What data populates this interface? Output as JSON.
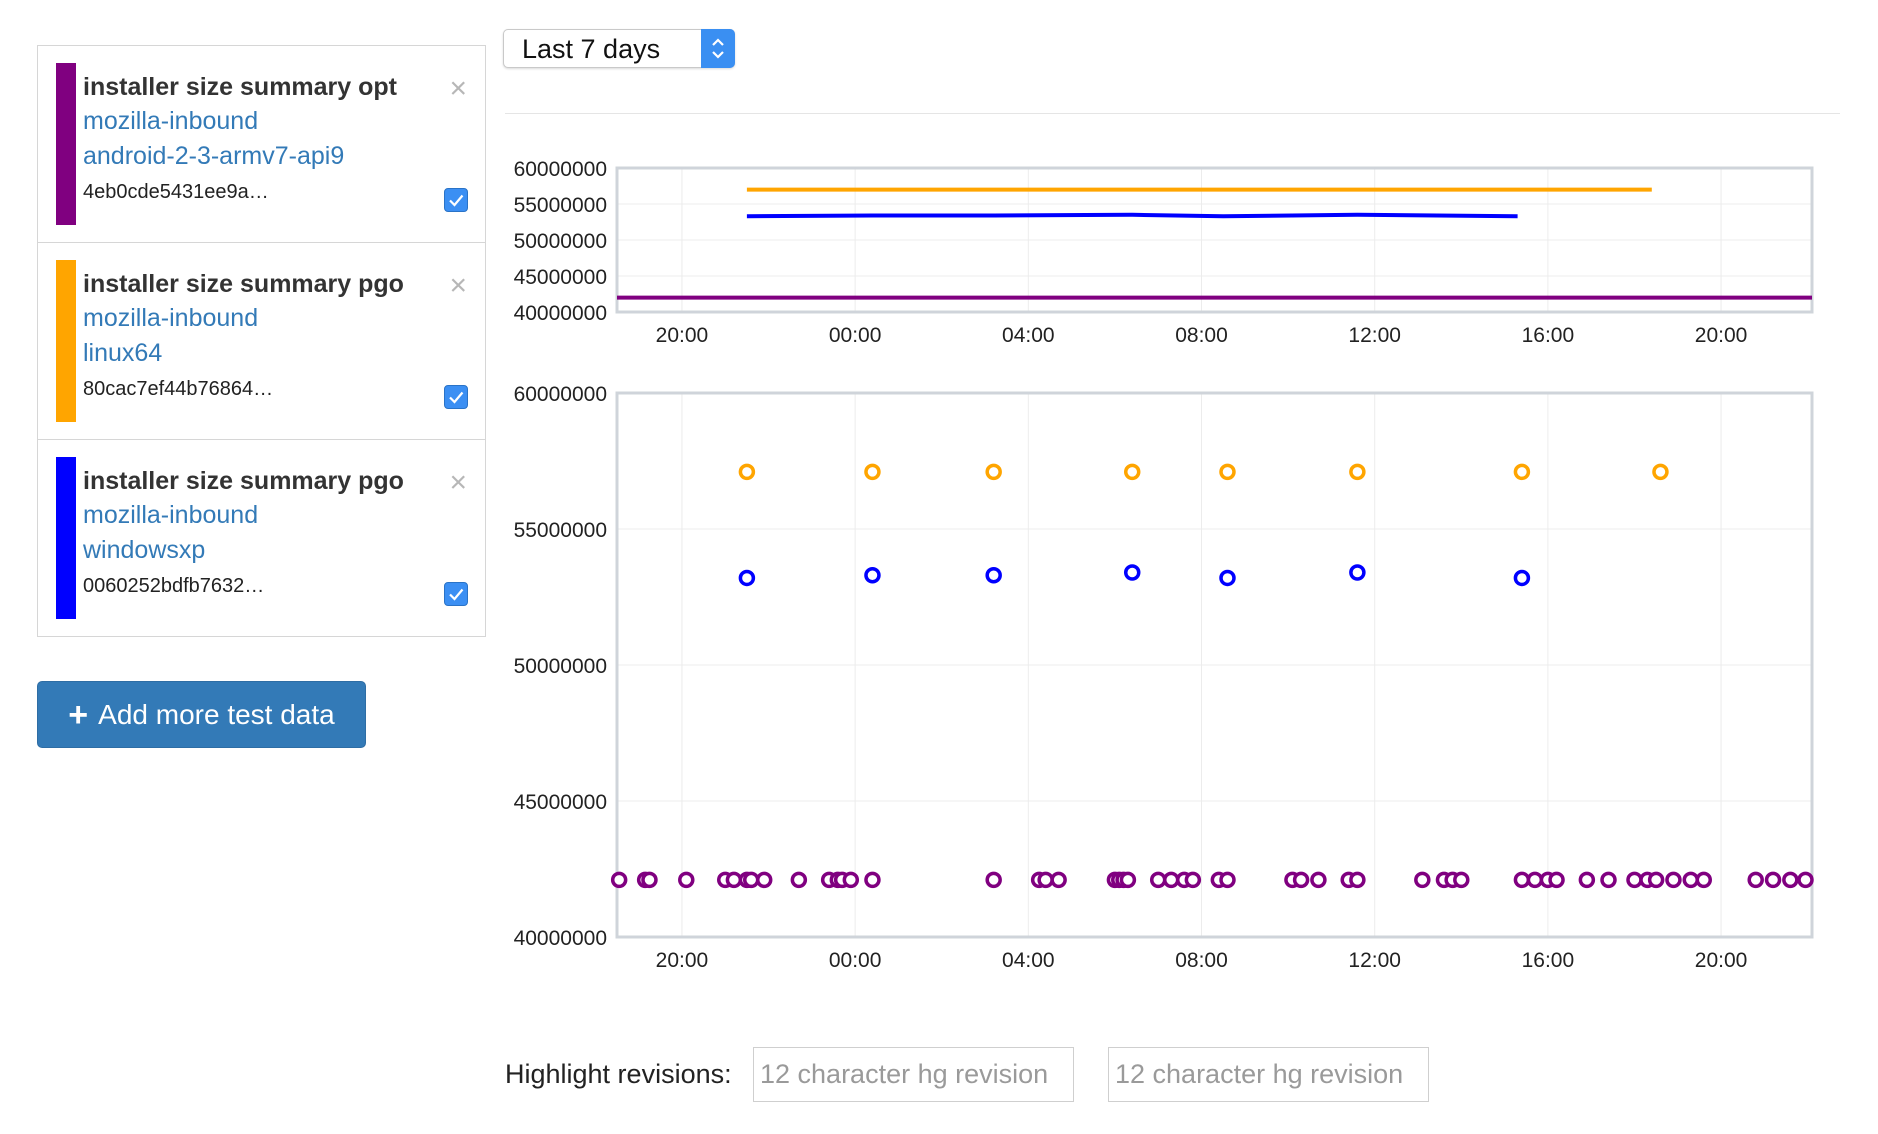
{
  "legend": {
    "series": [
      {
        "title": "installer size summary opt",
        "project": "mozilla-inbound",
        "platform": "android-2-3-armv7-api9",
        "signature": "4eb0cde5431ee9a…",
        "color": "#800080",
        "checked": true
      },
      {
        "title": "installer size summary pgo",
        "project": "mozilla-inbound",
        "platform": "linux64",
        "signature": "80cac7ef44b76864…",
        "color": "#ffa500",
        "checked": true
      },
      {
        "title": "installer size summary pgo",
        "project": "mozilla-inbound",
        "platform": "windowsxp",
        "signature": "0060252bdfb7632…",
        "color": "#0000ff",
        "checked": true
      }
    ],
    "close_glyph": "×",
    "add_button": "Add more test data",
    "add_icon": "plus-icon"
  },
  "time_range": {
    "selected": "Last 7 days"
  },
  "highlight": {
    "label": "Highlight revisions:",
    "placeholder_1": "12 character hg revision",
    "placeholder_2": "12 character hg revision"
  },
  "chart_data": [
    {
      "type": "line",
      "role": "overview",
      "x_unit": "hours",
      "xlim": [
        18.5,
        46.1
      ],
      "x_ticks": [
        20,
        24,
        28,
        32,
        36,
        40,
        44
      ],
      "x_tick_labels": [
        "20:00",
        "00:00",
        "04:00",
        "08:00",
        "12:00",
        "16:00",
        "20:00"
      ],
      "ylim": [
        40000000,
        60000000
      ],
      "y_ticks": [
        40000000,
        45000000,
        50000000,
        55000000,
        60000000
      ],
      "y_tick_labels": [
        "40000000",
        "45000000",
        "50000000",
        "55000000",
        "60000000"
      ],
      "grid": true,
      "series": [
        {
          "color": "#800080",
          "points": [
            [
              18.5,
              42000000
            ],
            [
              46.1,
              42000000
            ]
          ]
        },
        {
          "color": "#ffa500",
          "points": [
            [
              21.5,
              57000000
            ],
            [
              42.4,
              57000000
            ]
          ]
        },
        {
          "color": "#0000ff",
          "points": [
            [
              21.5,
              53300000
            ],
            [
              24.4,
              53400000
            ],
            [
              27.2,
              53400000
            ],
            [
              30.4,
              53500000
            ],
            [
              32.5,
              53300000
            ],
            [
              35.6,
              53500000
            ],
            [
              39.3,
              53300000
            ]
          ]
        }
      ]
    },
    {
      "type": "scatter",
      "role": "detail",
      "x_unit": "hours",
      "xlim": [
        18.5,
        46.1
      ],
      "x_ticks": [
        20,
        24,
        28,
        32,
        36,
        40,
        44
      ],
      "x_tick_labels": [
        "20:00",
        "00:00",
        "04:00",
        "08:00",
        "12:00",
        "16:00",
        "20:00"
      ],
      "ylim": [
        40000000,
        60000000
      ],
      "y_ticks": [
        40000000,
        45000000,
        50000000,
        55000000,
        60000000
      ],
      "y_tick_labels": [
        "40000000",
        "45000000",
        "50000000",
        "55000000",
        "60000000"
      ],
      "grid": true,
      "series": [
        {
          "color": "#ffa500",
          "points": [
            [
              21.5,
              57100000
            ],
            [
              24.4,
              57100000
            ],
            [
              27.2,
              57100000
            ],
            [
              30.4,
              57100000
            ],
            [
              32.6,
              57100000
            ],
            [
              35.6,
              57100000
            ],
            [
              39.4,
              57100000
            ],
            [
              42.6,
              57100000
            ]
          ]
        },
        {
          "color": "#0000ff",
          "points": [
            [
              21.5,
              53200000
            ],
            [
              24.4,
              53300000
            ],
            [
              27.2,
              53300000
            ],
            [
              30.4,
              53400000
            ],
            [
              32.6,
              53200000
            ],
            [
              35.6,
              53400000
            ],
            [
              39.4,
              53200000
            ]
          ]
        },
        {
          "color": "#800080",
          "points": [
            [
              18.55,
              42100000
            ],
            [
              19.15,
              42100000
            ],
            [
              19.25,
              42100000
            ],
            [
              20.1,
              42100000
            ],
            [
              21.0,
              42100000
            ],
            [
              21.2,
              42100000
            ],
            [
              21.5,
              42100000
            ],
            [
              21.6,
              42100000
            ],
            [
              21.9,
              42100000
            ],
            [
              22.7,
              42100000
            ],
            [
              23.4,
              42100000
            ],
            [
              23.6,
              42100000
            ],
            [
              23.7,
              42100000
            ],
            [
              23.9,
              42100000
            ],
            [
              24.4,
              42100000
            ],
            [
              27.2,
              42100000
            ],
            [
              28.25,
              42100000
            ],
            [
              28.4,
              42100000
            ],
            [
              28.7,
              42100000
            ],
            [
              30.0,
              42100000
            ],
            [
              30.1,
              42100000
            ],
            [
              30.2,
              42100000
            ],
            [
              30.3,
              42100000
            ],
            [
              31.0,
              42100000
            ],
            [
              31.3,
              42100000
            ],
            [
              31.6,
              42100000
            ],
            [
              31.8,
              42100000
            ],
            [
              32.4,
              42100000
            ],
            [
              32.6,
              42100000
            ],
            [
              34.1,
              42100000
            ],
            [
              34.3,
              42100000
            ],
            [
              34.7,
              42100000
            ],
            [
              35.4,
              42100000
            ],
            [
              35.6,
              42100000
            ],
            [
              37.1,
              42100000
            ],
            [
              37.6,
              42100000
            ],
            [
              37.8,
              42100000
            ],
            [
              38.0,
              42100000
            ],
            [
              39.4,
              42100000
            ],
            [
              39.7,
              42100000
            ],
            [
              40.0,
              42100000
            ],
            [
              40.2,
              42100000
            ],
            [
              40.9,
              42100000
            ],
            [
              41.4,
              42100000
            ],
            [
              42.0,
              42100000
            ],
            [
              42.3,
              42100000
            ],
            [
              42.5,
              42100000
            ],
            [
              42.9,
              42100000
            ],
            [
              43.3,
              42100000
            ],
            [
              43.6,
              42100000
            ],
            [
              44.8,
              42100000
            ],
            [
              45.2,
              42100000
            ],
            [
              45.6,
              42100000
            ],
            [
              45.95,
              42100000
            ]
          ]
        }
      ]
    }
  ]
}
